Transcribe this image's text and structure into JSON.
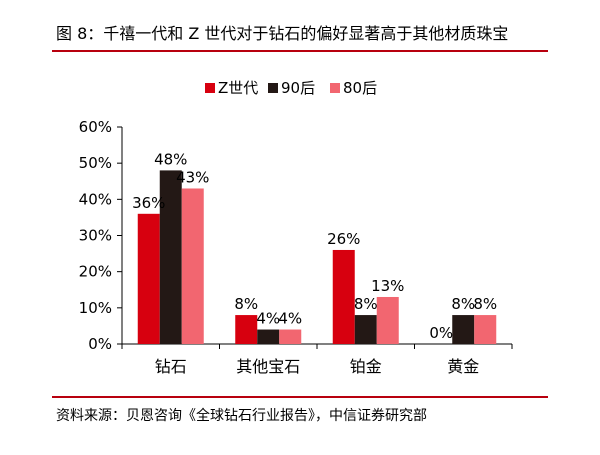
{
  "title": "图 8：千禧一代和 Z 世代对于钻石的偏好显著高于其他材质珠宝",
  "source": "资料来源：贝恩咨询《全球钻石行业报告》，中信证券研究部",
  "chart_data": {
    "type": "bar",
    "categories": [
      "钻石",
      "其他宝石",
      "铂金",
      "黄金"
    ],
    "series": [
      {
        "name": "Z世代",
        "color": "#d7000f",
        "values": [
          36,
          8,
          26,
          0
        ]
      },
      {
        "name": "90后",
        "color": "#231815",
        "values": [
          48,
          4,
          8,
          8
        ]
      },
      {
        "name": "80后",
        "color": "#f26670",
        "values": [
          43,
          4,
          13,
          8
        ]
      }
    ],
    "value_labels": [
      [
        "36%",
        "8%",
        "26%",
        "0%"
      ],
      [
        "48%",
        "4%",
        "8%",
        "8%"
      ],
      [
        "43%",
        "4%",
        "13%",
        "8%"
      ]
    ],
    "yticks": [
      "0%",
      "10%",
      "20%",
      "30%",
      "40%",
      "50%",
      "60%"
    ],
    "ylim": [
      0,
      60
    ],
    "grid": false,
    "legend": "top"
  }
}
